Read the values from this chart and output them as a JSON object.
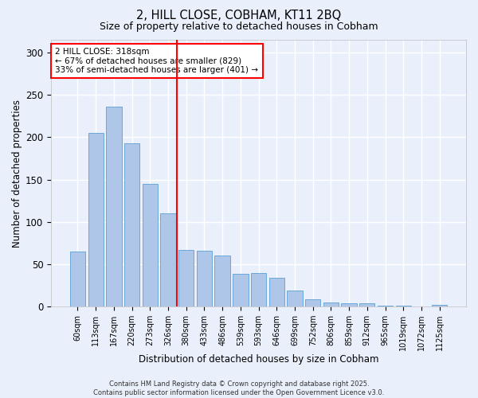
{
  "title1": "2, HILL CLOSE, COBHAM, KT11 2BQ",
  "title2": "Size of property relative to detached houses in Cobham",
  "xlabel": "Distribution of detached houses by size in Cobham",
  "ylabel": "Number of detached properties",
  "bar_labels": [
    "60sqm",
    "113sqm",
    "167sqm",
    "220sqm",
    "273sqm",
    "326sqm",
    "380sqm",
    "433sqm",
    "486sqm",
    "539sqm",
    "593sqm",
    "646sqm",
    "699sqm",
    "752sqm",
    "806sqm",
    "859sqm",
    "912sqm",
    "965sqm",
    "1019sqm",
    "1072sqm",
    "1125sqm"
  ],
  "bar_values": [
    65,
    205,
    236,
    193,
    145,
    110,
    67,
    66,
    60,
    39,
    40,
    34,
    19,
    9,
    5,
    4,
    4,
    1,
    1,
    0,
    2
  ],
  "bar_color": "#aec6e8",
  "bar_edge_color": "#5a9fd4",
  "bg_color": "#eaf0fb",
  "grid_color": "#ffffff",
  "vline_x": 5.5,
  "vline_color": "red",
  "annotation_text": "2 HILL CLOSE: 318sqm\n← 67% of detached houses are smaller (829)\n33% of semi-detached houses are larger (401) →",
  "annotation_box_color": "white",
  "annotation_box_edge": "red",
  "footer": "Contains HM Land Registry data © Crown copyright and database right 2025.\nContains public sector information licensed under the Open Government Licence v3.0.",
  "ylim": [
    0,
    315
  ],
  "yticks": [
    0,
    50,
    100,
    150,
    200,
    250,
    300
  ]
}
